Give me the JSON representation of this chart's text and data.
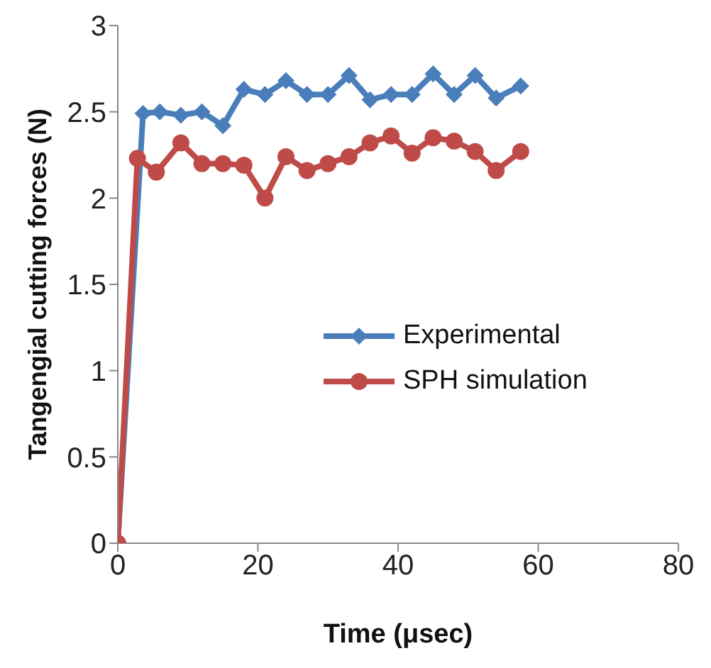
{
  "chart_data": {
    "type": "line",
    "xlabel": "Time (μsec)",
    "ylabel": "Tangengial cutting forces (N)",
    "xlim": [
      0,
      80
    ],
    "xticks": [
      0,
      20,
      40,
      60,
      80
    ],
    "ylim": [
      0,
      3
    ],
    "yticks": [
      0,
      0.5,
      1,
      1.5,
      2,
      2.5,
      3
    ],
    "grid": false,
    "legend": "right",
    "series": [
      {
        "name": "Experimental",
        "color": "#4a7ebb",
        "marker": "diamond",
        "x": [
          0,
          3.6,
          6,
          9,
          12,
          15,
          18,
          21,
          24,
          27,
          30,
          33,
          36,
          39,
          42,
          45,
          48,
          51,
          54,
          57.5
        ],
        "values": [
          0,
          2.49,
          2.5,
          2.48,
          2.5,
          2.42,
          2.63,
          2.6,
          2.68,
          2.6,
          2.6,
          2.71,
          2.57,
          2.6,
          2.6,
          2.72,
          2.6,
          2.71,
          2.58,
          2.65
        ]
      },
      {
        "name": "SPH simulation",
        "color": "#be4b48",
        "marker": "circle",
        "x": [
          0,
          2.8,
          5.5,
          9,
          12,
          15,
          18,
          21,
          24,
          27,
          30,
          33,
          36,
          39,
          42,
          45,
          48,
          51,
          54,
          57.5
        ],
        "values": [
          0,
          2.23,
          2.15,
          2.32,
          2.2,
          2.2,
          2.19,
          2.0,
          2.24,
          2.16,
          2.2,
          2.24,
          2.32,
          2.36,
          2.26,
          2.35,
          2.33,
          2.27,
          2.16,
          2.27
        ]
      }
    ]
  }
}
